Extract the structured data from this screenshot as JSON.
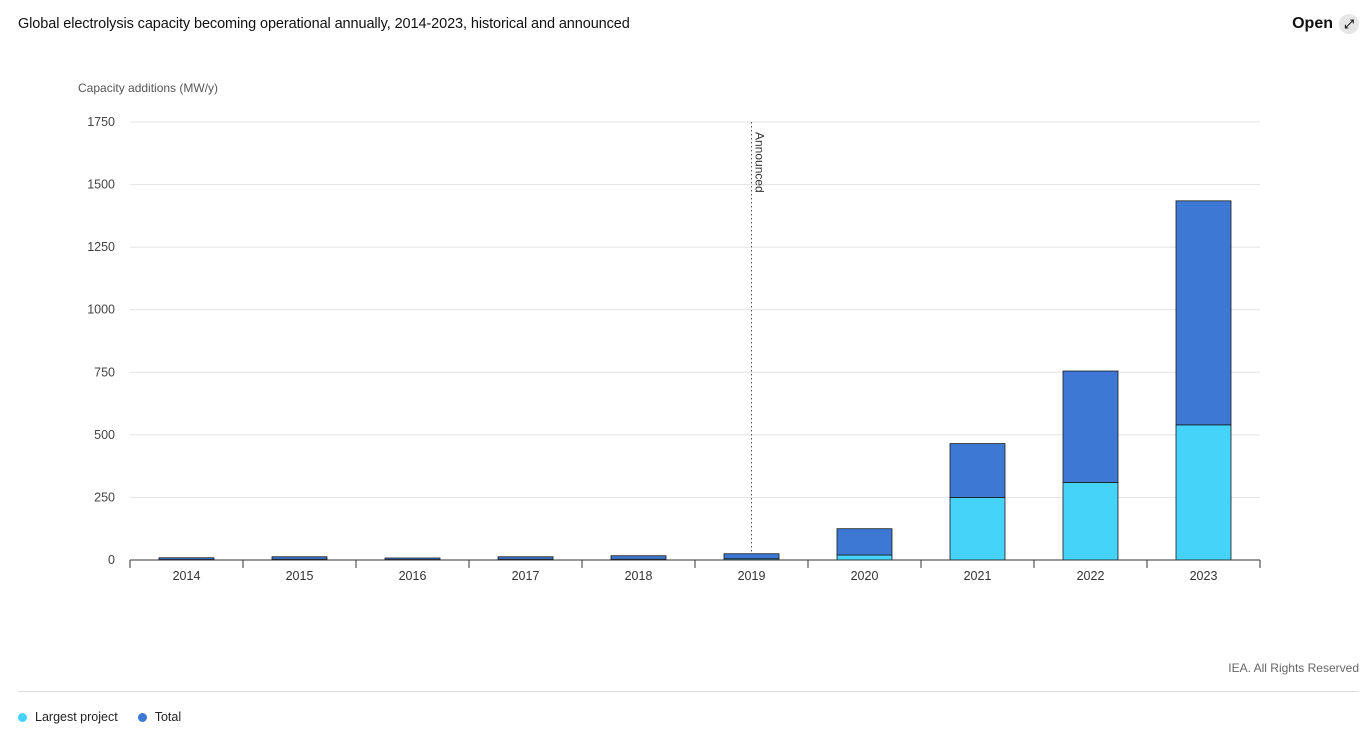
{
  "header": {
    "title": "Global electrolysis capacity becoming operational annually, 2014-2023, historical and announced",
    "open_label": "Open",
    "open_icon": "expand-arrows-icon"
  },
  "footer": {
    "credit": "IEA. All Rights Reserved"
  },
  "colors": {
    "largest_project": "#45d3fa",
    "total": "#3c78d4",
    "gridline": "#e3e3e3",
    "axis": "#333333"
  },
  "chart_data": {
    "type": "bar",
    "stacked": true,
    "title": "Global electrolysis capacity becoming operational annually, 2014-2023, historical and announced",
    "ylabel": "Capacity additions (MW/y)",
    "xlabel": "",
    "ylim": [
      0,
      1750
    ],
    "yticks": [
      0,
      250,
      500,
      750,
      1000,
      1250,
      1500,
      1750
    ],
    "categories": [
      "2014",
      "2015",
      "2016",
      "2017",
      "2018",
      "2019",
      "2020",
      "2021",
      "2022",
      "2023"
    ],
    "series": [
      {
        "name": "Largest project",
        "color": "#45d3fa",
        "values": [
          2,
          3,
          2,
          3,
          3,
          5,
          20,
          250,
          310,
          540
        ]
      },
      {
        "name": "Total",
        "color": "#3c78d4",
        "values": [
          7,
          10,
          6,
          10,
          14,
          20,
          105,
          215,
          445,
          895
        ]
      }
    ],
    "annotations": [
      {
        "type": "vertical-line",
        "at": "2019",
        "label": "Announced",
        "style": "dotted"
      }
    ],
    "grid": true,
    "legend_position": "bottom-left"
  }
}
